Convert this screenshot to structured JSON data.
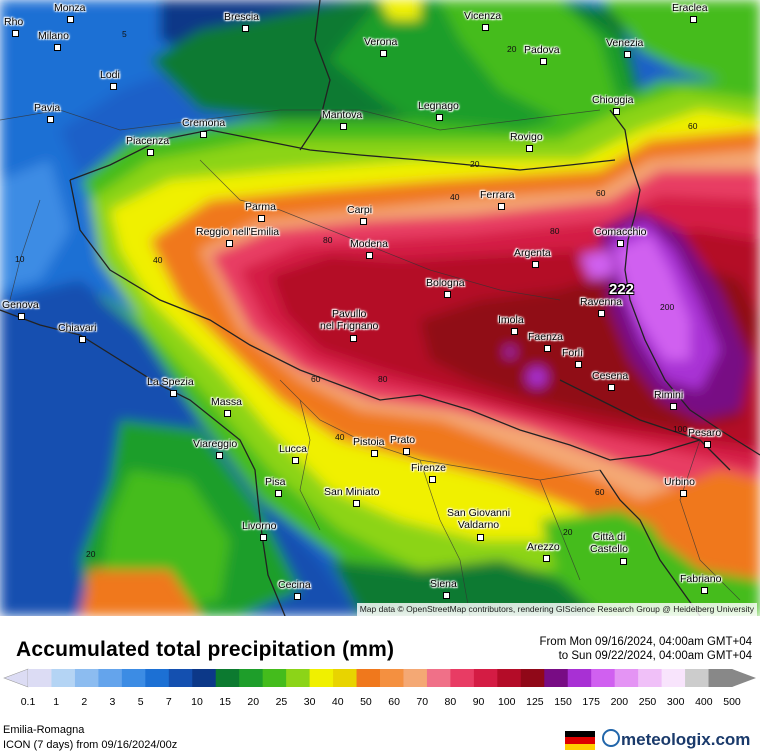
{
  "map": {
    "attribution": "Map data © OpenStreetMap contributors, rendering GIScience Research Group @ Heidelberg University",
    "max_value_label": "222",
    "contour_labels": [
      "5",
      "10",
      "20",
      "20",
      "40",
      "40",
      "40",
      "60",
      "60",
      "60",
      "60",
      "80",
      "80",
      "80",
      "100",
      "200",
      "20",
      "20"
    ],
    "cities": [
      "Rho",
      "Monza",
      "Milano",
      "Brescia",
      "Verona",
      "Vicenza",
      "Padova",
      "Venezia",
      "Eraclea",
      "Lodi",
      "Pavia",
      "Cremona",
      "Mantova",
      "Legnago",
      "Chioggia",
      "Piacenza",
      "Rovigo",
      "Ferrara",
      "Parma",
      "Carpi",
      "Reggio nell'Emilia",
      "Modena",
      "Comacchio",
      "Argenta",
      "Bologna",
      "Ravenna",
      "Pavullo nel Frignano",
      "Imola",
      "Faenza",
      "Forlì",
      "Cesena",
      "Rimini",
      "Chiavari",
      "La Spezia",
      "Massa",
      "Viareggio",
      "Lucca",
      "Pistoia",
      "Prato",
      "Firenze",
      "Pisa",
      "San Miniato",
      "Livorno",
      "San Giovanni Valdarno",
      "Arezzo",
      "Città di Castello",
      "Urbino",
      "Pesaro",
      "Cecina",
      "Siena",
      "Fabriano",
      "Genova"
    ]
  },
  "legend": {
    "title": "Accumulated total precipitation (mm)",
    "period_from": "From Mon 09/16/2024, 04:00am GMT+04",
    "period_to": "to Sun 09/22/2024, 04:00am GMT+04",
    "ticks": [
      "0.1",
      "1",
      "2",
      "3",
      "5",
      "7",
      "10",
      "15",
      "20",
      "25",
      "30",
      "40",
      "50",
      "60",
      "70",
      "80",
      "90",
      "100",
      "125",
      "150",
      "175",
      "200",
      "250",
      "300",
      "400",
      "500"
    ],
    "colors": [
      "#dcdcf4",
      "#b4d4f4",
      "#8cbcf0",
      "#64a4ec",
      "#3c8ce4",
      "#1c70d4",
      "#1450b0",
      "#0c3888",
      "#0c7a30",
      "#1e9e2a",
      "#44bc1c",
      "#8cd418",
      "#f0f000",
      "#e8d400",
      "#f0781c",
      "#f49040",
      "#f4a874",
      "#f07088",
      "#e83c64",
      "#d41c44",
      "#b40c28",
      "#900818",
      "#780c84",
      "#a830d4",
      "#d060f0",
      "#e494f4",
      "#f0c0f8",
      "#f8e4fc",
      "#cccccc",
      "#888888"
    ],
    "region": "Emilia-Romagna",
    "model": "ICON (7 days)  from  09/16/2024/00z",
    "brand": "meteologix.com"
  }
}
